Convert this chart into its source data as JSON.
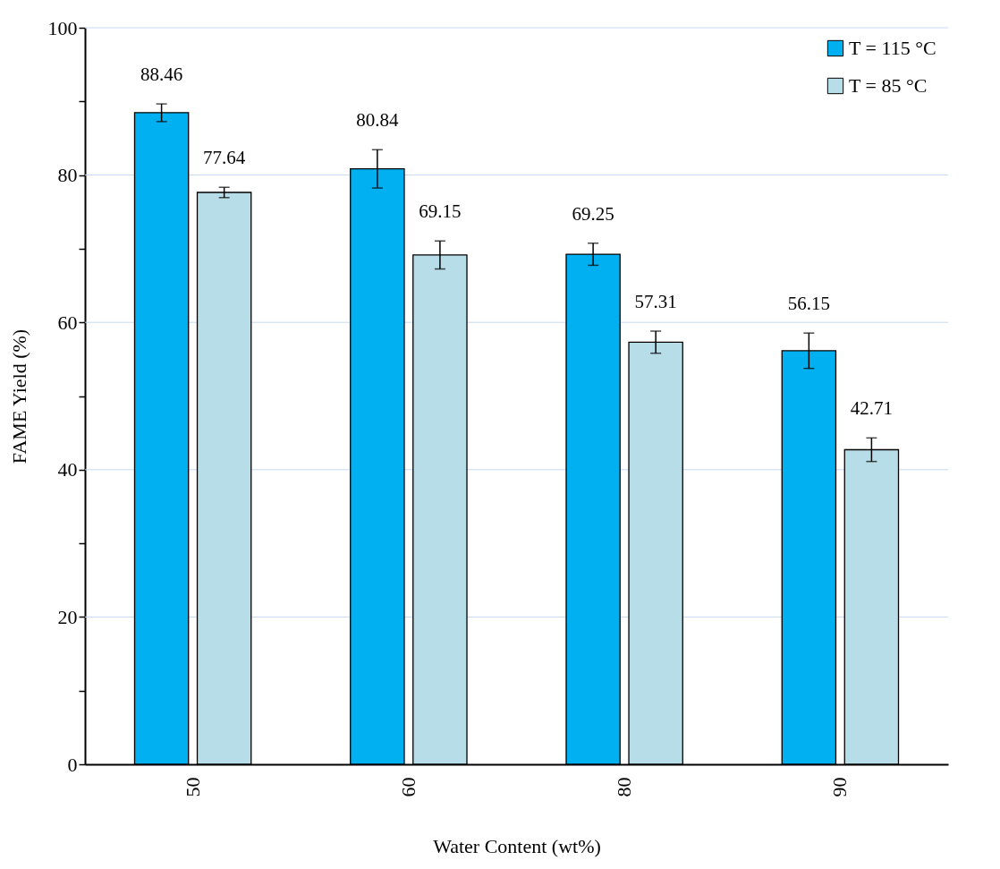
{
  "chart_data": {
    "type": "bar",
    "xlabel": "Water Content (wt%)",
    "ylabel": "FAME Yield (%)",
    "categories": [
      "50",
      "60",
      "80",
      "90"
    ],
    "series": [
      {
        "name": "T = 115 °C",
        "color": "#00b0f0",
        "values": [
          88.46,
          80.84,
          69.25,
          56.15
        ],
        "errors": [
          1.2,
          2.6,
          1.5,
          2.4
        ]
      },
      {
        "name": "T = 85 °C",
        "color": "#b7dde8",
        "values": [
          77.64,
          69.15,
          57.31,
          42.71
        ],
        "errors": [
          0.7,
          1.9,
          1.5,
          1.6
        ]
      }
    ],
    "ylim": [
      0,
      100
    ],
    "yticks": [
      0,
      {
        "value": 10,
        "label": null
      },
      20,
      {
        "value": 30,
        "label": null
      },
      40,
      {
        "value": 50,
        "label": null
      },
      60,
      {
        "value": 70,
        "label": null
      },
      80,
      {
        "value": 90,
        "label": null
      },
      100
    ],
    "grid": "y",
    "legend": "top right",
    "data_labels": true
  }
}
